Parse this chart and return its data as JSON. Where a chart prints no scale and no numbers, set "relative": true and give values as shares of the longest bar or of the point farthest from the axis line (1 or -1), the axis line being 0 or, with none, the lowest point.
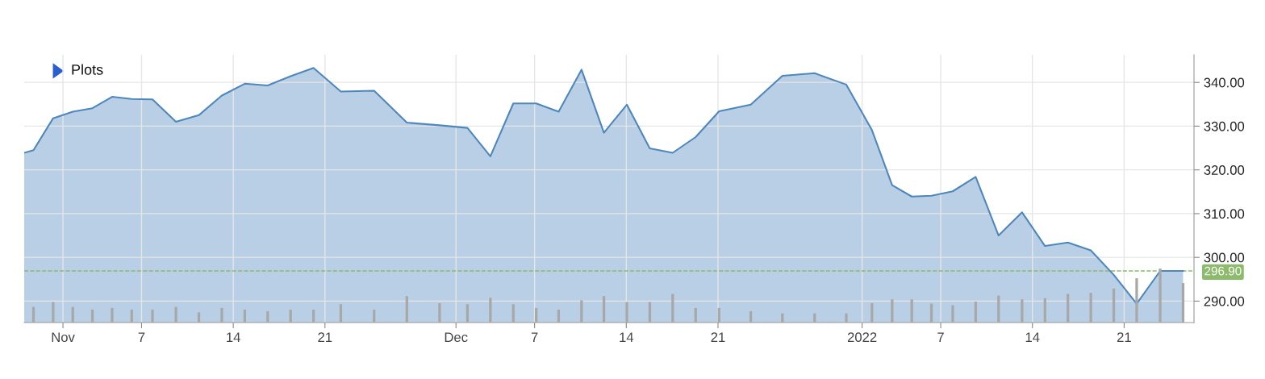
{
  "chart_data": [
    {
      "type": "area",
      "x": [
        "2021-10-29T01:00",
        "2021-10-29T18:00",
        "2021-10-31T06:00",
        "2021-11-01T18:00",
        "2021-11-03T06:00",
        "2021-11-04T18:00",
        "2021-11-06T06:00",
        "2021-11-07T20:00",
        "2021-11-09T15:00",
        "2021-11-11T09:00",
        "2021-11-13T03:00",
        "2021-11-14T21:00",
        "2021-11-16T15:00",
        "2021-11-18T09:00",
        "2021-11-20T03:00",
        "2021-11-22T05:00",
        "2021-11-24T18:00",
        "2021-11-27T06:00",
        "2021-11-29T18:00",
        "2021-12-01T21:00",
        "2021-12-03T15:00",
        "2021-12-05T09:00",
        "2021-12-07T03:00",
        "2021-12-08T20:00",
        "2021-12-10T14:00",
        "2021-12-12T07:00",
        "2021-12-14T01:00",
        "2021-12-15T19:00",
        "2021-12-17T13:00",
        "2021-12-19T07:00",
        "2021-12-21T02:00",
        "2021-12-23T12:00",
        "2021-12-25T22:00",
        "2021-12-28T09:00",
        "2021-12-30T19:00",
        "2022-01-01T18:00",
        "2022-01-03T07:00",
        "2022-01-04T19:00",
        "2022-01-06T07:00",
        "2022-01-07T22:00",
        "2022-01-09T16:00",
        "2022-01-11T10:00",
        "2022-01-13T05:00",
        "2022-01-14T23:00",
        "2022-01-16T17:00",
        "2022-01-18T11:00",
        "2022-01-20T05:00",
        "2022-01-21T23:00",
        "2022-01-23T18:00",
        "2022-01-25T12:00"
      ],
      "series": [
        {
          "color": "#4f87bd",
          "values": [
            323.9,
            324.5,
            331.8,
            333.3,
            334.1,
            336.7,
            336.2,
            336.1,
            331.0,
            332.5,
            337.0,
            339.7,
            339.3,
            341.4,
            343.3,
            337.9,
            338.1,
            330.8,
            330.2,
            329.6,
            323.1,
            335.2,
            335.2,
            333.3,
            342.9,
            328.5,
            334.9,
            324.9,
            323.9,
            327.5,
            333.4,
            334.9,
            341.5,
            342.1,
            339.5,
            329.1,
            316.5,
            313.9,
            314.1,
            315.1,
            318.4,
            305.0,
            310.3,
            302.6,
            303.4,
            301.6,
            296.0,
            289.4,
            296.9,
            296.9
          ]
        }
      ],
      "xlim": [
        "2021-10-29T01:00",
        "2022-01-26T08:00"
      ],
      "xticks": [
        {
          "value": "2021-11-01",
          "label": "Nov"
        },
        {
          "value": "2021-11-07",
          "label": "7"
        },
        {
          "value": "2021-11-14",
          "label": "14"
        },
        {
          "value": "2021-11-21",
          "label": "21"
        },
        {
          "value": "2021-12-01",
          "label": "Dec"
        },
        {
          "value": "2021-12-07",
          "label": "7"
        },
        {
          "value": "2021-12-14",
          "label": "14"
        },
        {
          "value": "2021-12-21",
          "label": "21"
        },
        {
          "value": "2022-01-01",
          "label": "2022"
        },
        {
          "value": "2022-01-07",
          "label": "7"
        },
        {
          "value": "2022-01-14",
          "label": "14"
        },
        {
          "value": "2022-01-21",
          "label": "21"
        }
      ],
      "ylim": [
        285.1,
        346.3
      ],
      "yticks": [
        {
          "value": 290,
          "label": "290.00"
        },
        {
          "value": 300,
          "label": "300.00"
        },
        {
          "value": 310,
          "label": "310.00"
        },
        {
          "value": 320,
          "label": "320.00"
        },
        {
          "value": 330,
          "label": "330.00"
        },
        {
          "value": 340,
          "label": "340.00"
        }
      ],
      "grid": true,
      "ref_lines": [
        {
          "axis": "y",
          "value": 296.9,
          "label": "296.90",
          "color": "#8dbb6e",
          "line_style": "dashed"
        }
      ],
      "annotations": [
        "Plots"
      ]
    },
    {
      "type": "bar",
      "relative": true,
      "color": "#a8a8a8",
      "x": [
        "2021-10-29T18:00",
        "2021-10-31T06:00",
        "2021-11-01T18:00",
        "2021-11-03T06:00",
        "2021-11-04T18:00",
        "2021-11-06T06:00",
        "2021-11-07T20:00",
        "2021-11-09T15:00",
        "2021-11-11T09:00",
        "2021-11-13T03:00",
        "2021-11-14T21:00",
        "2021-11-16T15:00",
        "2021-11-18T09:00",
        "2021-11-20T03:00",
        "2021-11-22T05:00",
        "2021-11-24T18:00",
        "2021-11-27T06:00",
        "2021-11-29T18:00",
        "2021-12-01T21:00",
        "2021-12-03T15:00",
        "2021-12-05T09:00",
        "2021-12-07T03:00",
        "2021-12-08T20:00",
        "2021-12-10T14:00",
        "2021-12-12T07:00",
        "2021-12-14T01:00",
        "2021-12-15T19:00",
        "2021-12-17T13:00",
        "2021-12-19T07:00",
        "2021-12-21T02:00",
        "2021-12-23T12:00",
        "2021-12-25T22:00",
        "2021-12-28T09:00",
        "2021-12-30T19:00",
        "2022-01-01T18:00",
        "2022-01-03T07:00",
        "2022-01-04T19:00",
        "2022-01-06T07:00",
        "2022-01-07T22:00",
        "2022-01-09T16:00",
        "2022-01-11T10:00",
        "2022-01-13T05:00",
        "2022-01-14T23:00",
        "2022-01-16T17:00",
        "2022-01-18T11:00",
        "2022-01-20T05:00",
        "2022-01-21T23:00",
        "2022-01-23T18:00",
        "2022-01-25T12:00"
      ],
      "xlim": [
        "2021-10-29T01:00",
        "2022-01-26T08:00"
      ],
      "values": [
        0.29,
        0.38,
        0.29,
        0.24,
        0.27,
        0.24,
        0.24,
        0.29,
        0.19,
        0.27,
        0.24,
        0.21,
        0.24,
        0.24,
        0.34,
        0.24,
        0.49,
        0.36,
        0.34,
        0.46,
        0.34,
        0.27,
        0.24,
        0.41,
        0.49,
        0.38,
        0.38,
        0.53,
        0.27,
        0.27,
        0.21,
        0.17,
        0.17,
        0.17,
        0.36,
        0.43,
        0.43,
        0.35,
        0.32,
        0.39,
        0.5,
        0.43,
        0.45,
        0.53,
        0.55,
        0.63,
        0.82,
        1,
        0.73
      ]
    }
  ]
}
